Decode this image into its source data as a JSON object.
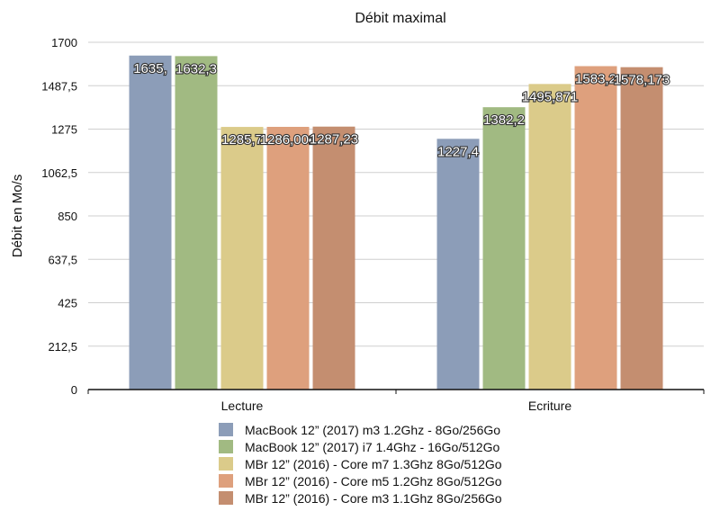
{
  "chart_data": {
    "type": "bar",
    "title": "Débit maximal",
    "xlabel": "",
    "ylabel": "Débit en Mo/s",
    "ylim": [
      0,
      1700
    ],
    "yticks": [
      "0",
      "212,5",
      "425",
      "637,5",
      "850",
      "1062,5",
      "1275",
      "1487,5",
      "1700"
    ],
    "ytick_values": [
      0,
      212.5,
      425,
      637.5,
      850,
      1062.5,
      1275,
      1487.5,
      1700
    ],
    "categories": [
      "Lecture",
      "Ecriture"
    ],
    "grid": true,
    "legend_position": "bottom",
    "series": [
      {
        "name": "MacBook 12” (2017) m3 1.2Ghz - 8Go/256Go",
        "color": "#8c9db8",
        "values": [
          1635,
          1227.4
        ],
        "labels": [
          "1635,",
          "1227,4"
        ]
      },
      {
        "name": "MacBook 12” (2017) i7 1.4Ghz - 16Go/512Go",
        "color": "#a1ba82",
        "values": [
          1632.3,
          1382.2
        ],
        "labels": [
          "1632,3",
          "1382,2"
        ]
      },
      {
        "name": "MBr 12” (2016) - Core m7 1.3Ghz  8Go/512Go",
        "color": "#dbcb8a",
        "values": [
          1285.7,
          1495.871
        ],
        "labels": [
          "1285,7",
          "1495,871"
        ]
      },
      {
        "name": "MBr 12” (2016) - Core m5 1.2Ghz  8Go/512Go",
        "color": "#dea07d",
        "values": [
          1286.001,
          1583.2
        ],
        "labels": [
          "1286,001",
          "1583,2"
        ]
      },
      {
        "name": "MBr 12” (2016) - Core m3 1.1Ghz  8Go/256Go",
        "color": "#c48e70",
        "values": [
          1287.23,
          1578.173
        ],
        "labels": [
          "1287,23",
          "1578,173"
        ]
      }
    ]
  }
}
